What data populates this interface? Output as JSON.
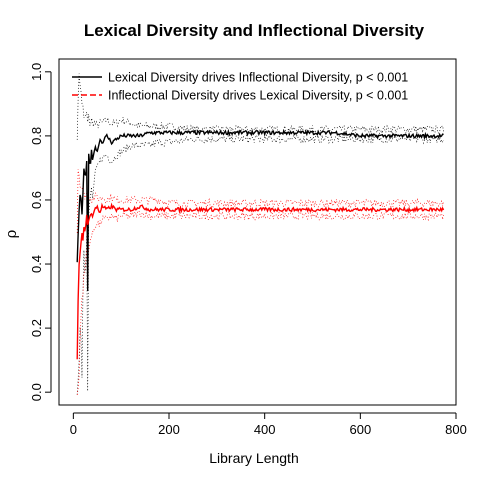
{
  "chart_data": {
    "type": "line",
    "title": "Lexical Diversity and Inflectional Diversity",
    "xlabel": "Library Length",
    "ylabel": "ρ",
    "xlim": [
      0,
      800
    ],
    "ylim": [
      0.0,
      1.0
    ],
    "xticks": [
      0,
      200,
      400,
      600,
      800
    ],
    "xtick_labels": [
      "0",
      "200",
      "400",
      "600",
      "800"
    ],
    "yticks": [
      0.0,
      0.2,
      0.4,
      0.6,
      0.8,
      1.0
    ],
    "ytick_labels": [
      "0.0",
      "0.2",
      "0.4",
      "0.6",
      "0.8",
      "1.0"
    ],
    "grid": false,
    "legend_position": "top-left",
    "series": [
      {
        "name": "Lexical Diversity drives Inflectional Diversity, p < 0.001",
        "color": "#000000",
        "line": "solid",
        "band_line": "dotted",
        "x": [
          8,
          12,
          15,
          18,
          20,
          22,
          25,
          28,
          30,
          32,
          35,
          38,
          40,
          45,
          50,
          55,
          60,
          70,
          80,
          90,
          100,
          120,
          140,
          160,
          180,
          200,
          250,
          300,
          350,
          400,
          450,
          500,
          550,
          600,
          650,
          700,
          750,
          775
        ],
        "y": [
          0.4,
          0.57,
          0.63,
          0.55,
          0.62,
          0.7,
          0.66,
          0.72,
          0.31,
          0.74,
          0.7,
          0.76,
          0.72,
          0.77,
          0.75,
          0.79,
          0.78,
          0.8,
          0.78,
          0.79,
          0.8,
          0.8,
          0.8,
          0.81,
          0.81,
          0.81,
          0.81,
          0.81,
          0.81,
          0.81,
          0.81,
          0.81,
          0.81,
          0.8,
          0.8,
          0.8,
          0.8,
          0.8
        ],
        "lower": [
          0.0,
          0.1,
          0.25,
          0.05,
          0.3,
          0.45,
          0.35,
          0.5,
          0.0,
          0.55,
          0.6,
          0.64,
          0.6,
          0.68,
          0.7,
          0.72,
          0.73,
          0.74,
          0.72,
          0.74,
          0.75,
          0.77,
          0.77,
          0.77,
          0.78,
          0.78,
          0.79,
          0.79,
          0.79,
          0.79,
          0.79,
          0.79,
          0.79,
          0.79,
          0.79,
          0.79,
          0.79,
          0.79
        ],
        "upper": [
          0.8,
          1.0,
          0.95,
          0.9,
          0.9,
          0.85,
          0.86,
          0.87,
          0.84,
          0.86,
          0.83,
          0.85,
          0.84,
          0.84,
          0.83,
          0.84,
          0.84,
          0.85,
          0.84,
          0.84,
          0.85,
          0.84,
          0.83,
          0.83,
          0.83,
          0.83,
          0.82,
          0.82,
          0.82,
          0.82,
          0.82,
          0.82,
          0.82,
          0.82,
          0.82,
          0.82,
          0.82,
          0.82
        ]
      },
      {
        "name": "Inflectional Diversity drives Lexical Diversity, p < 0.001",
        "color": "#ff0000",
        "line": "dashed",
        "band_line": "dotted",
        "x": [
          8,
          10,
          12,
          15,
          18,
          20,
          22,
          25,
          28,
          30,
          35,
          40,
          45,
          50,
          55,
          60,
          70,
          80,
          90,
          100,
          120,
          140,
          160,
          180,
          200,
          250,
          300,
          350,
          400,
          450,
          500,
          550,
          600,
          650,
          700,
          750,
          775
        ],
        "y": [
          0.1,
          0.28,
          0.4,
          0.45,
          0.5,
          0.47,
          0.52,
          0.5,
          0.55,
          0.52,
          0.56,
          0.55,
          0.57,
          0.58,
          0.56,
          0.58,
          0.57,
          0.58,
          0.57,
          0.57,
          0.57,
          0.58,
          0.57,
          0.57,
          0.57,
          0.57,
          0.57,
          0.57,
          0.57,
          0.57,
          0.57,
          0.57,
          0.57,
          0.57,
          0.57,
          0.57,
          0.57
        ],
        "lower": [
          0.0,
          0.0,
          0.05,
          0.2,
          0.3,
          0.3,
          0.38,
          0.38,
          0.45,
          0.42,
          0.48,
          0.49,
          0.52,
          0.53,
          0.52,
          0.54,
          0.54,
          0.55,
          0.54,
          0.55,
          0.55,
          0.56,
          0.55,
          0.55,
          0.55,
          0.55,
          0.55,
          0.55,
          0.55,
          0.55,
          0.55,
          0.55,
          0.55,
          0.55,
          0.55,
          0.55,
          0.55
        ],
        "upper": [
          0.5,
          0.7,
          0.68,
          0.64,
          0.64,
          0.62,
          0.62,
          0.61,
          0.62,
          0.61,
          0.61,
          0.6,
          0.61,
          0.61,
          0.6,
          0.61,
          0.6,
          0.61,
          0.6,
          0.6,
          0.6,
          0.6,
          0.6,
          0.6,
          0.59,
          0.59,
          0.59,
          0.59,
          0.59,
          0.59,
          0.59,
          0.59,
          0.59,
          0.59,
          0.59,
          0.59,
          0.59
        ]
      }
    ]
  }
}
